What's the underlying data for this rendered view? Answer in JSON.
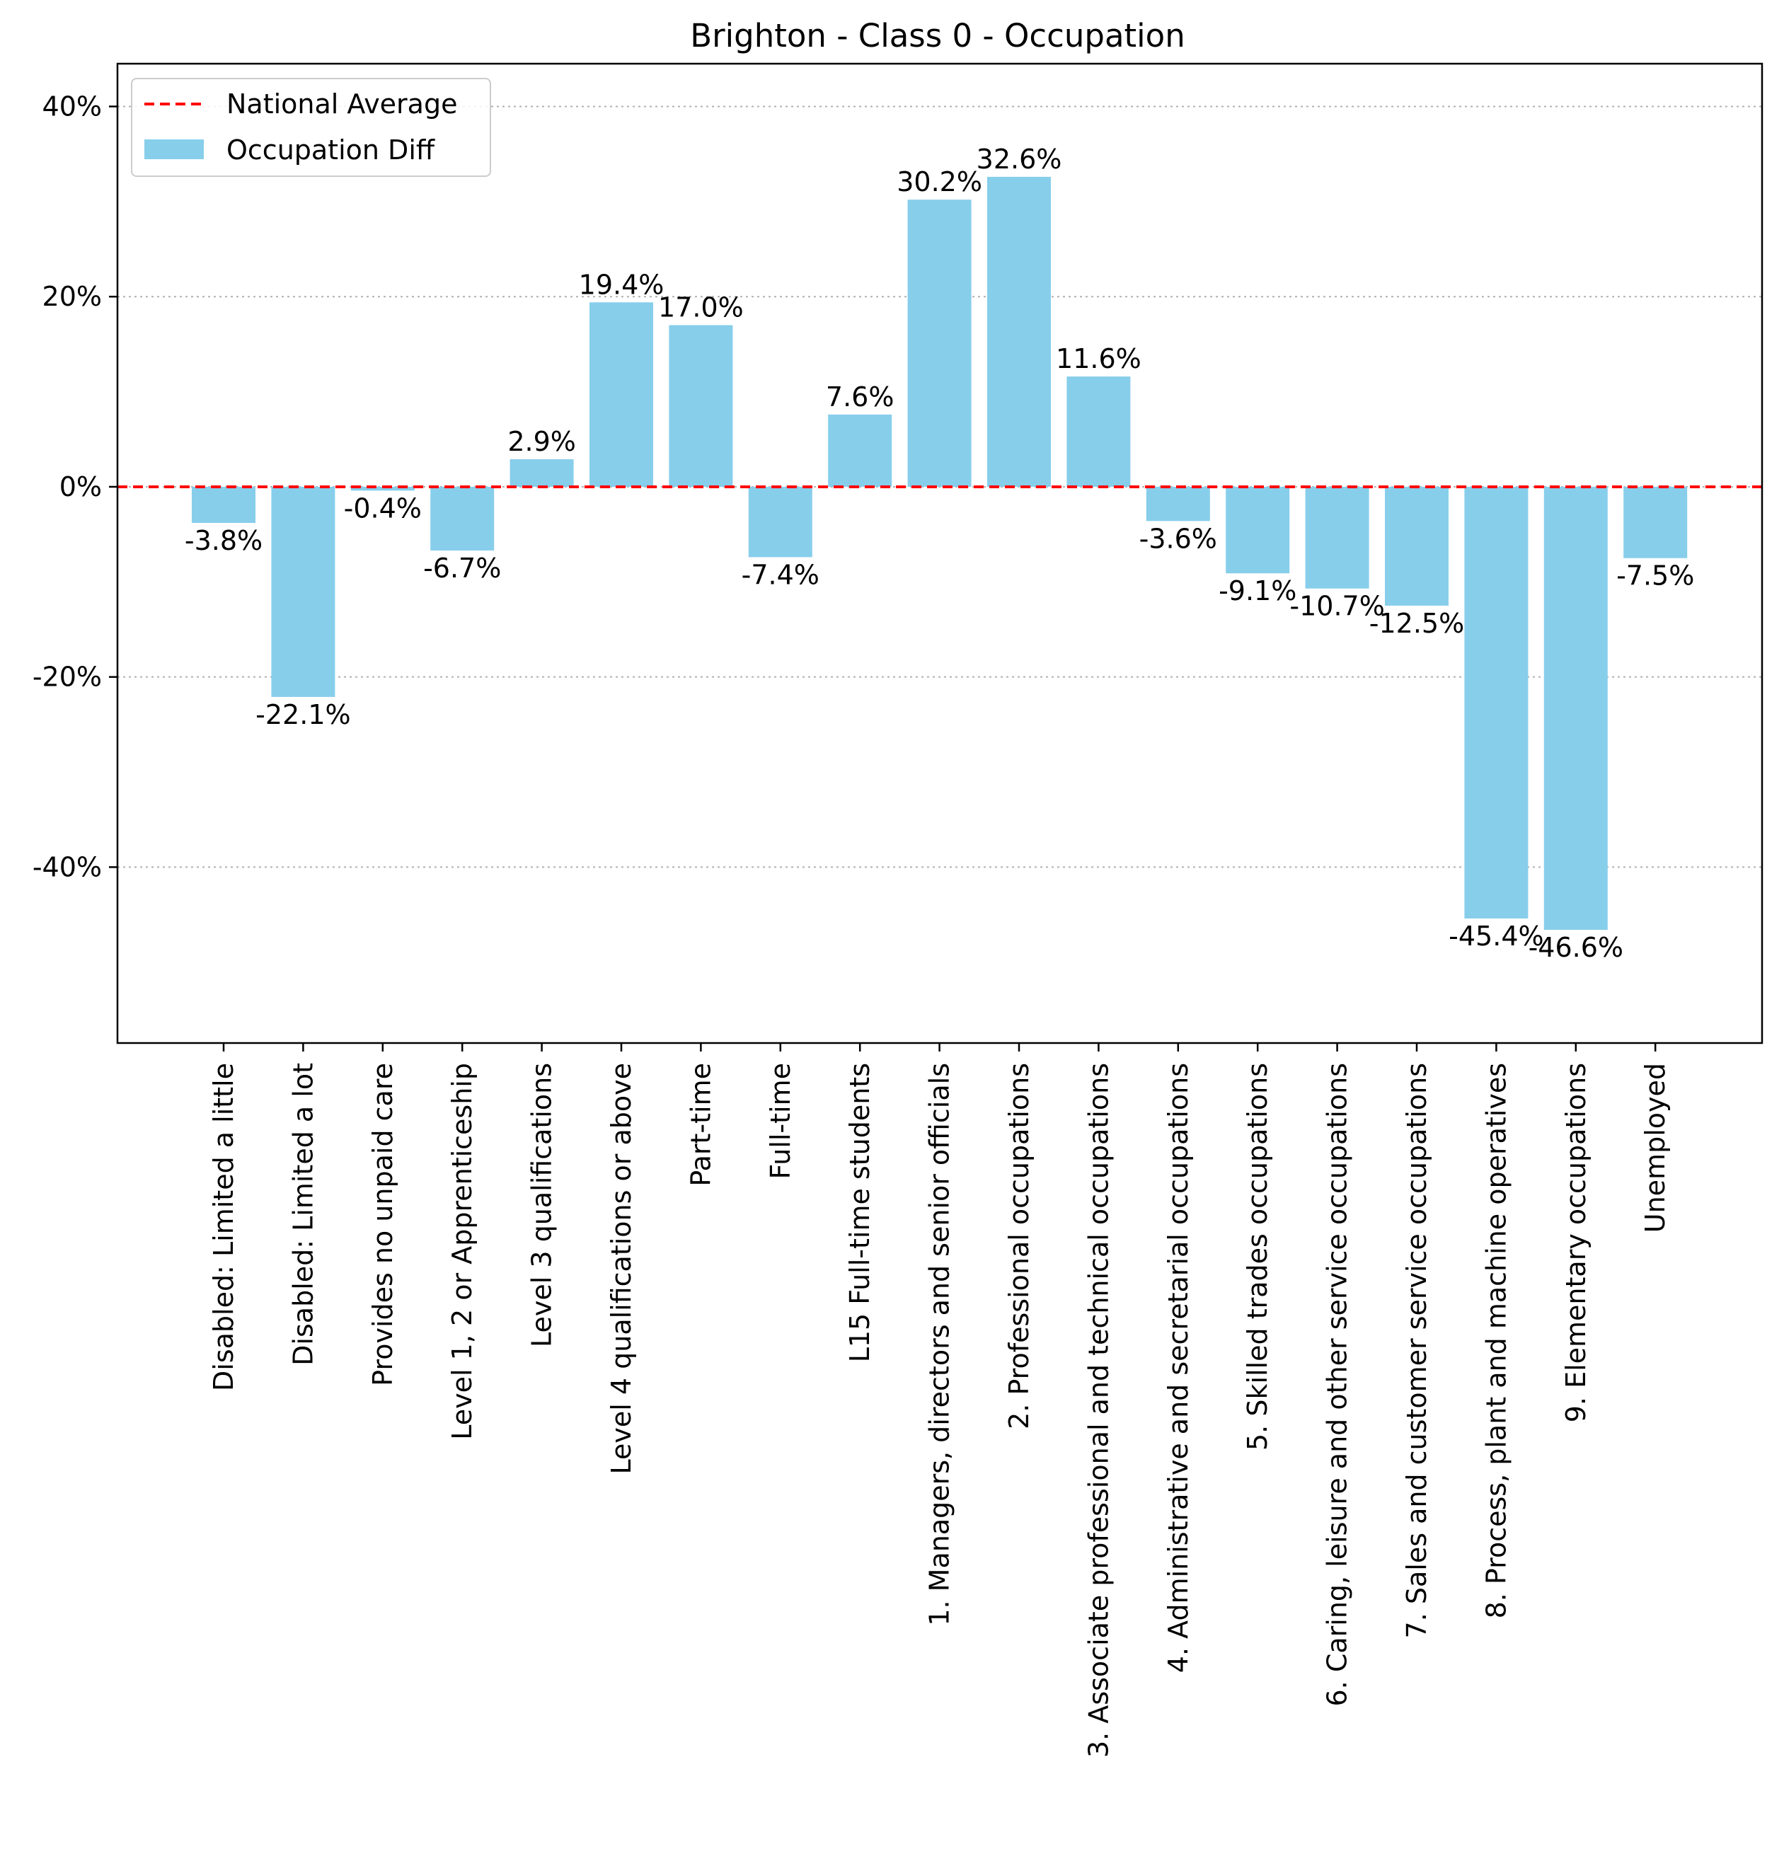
{
  "chart_data": {
    "type": "bar",
    "title": "Brighton - Class 0 - Occupation",
    "xlabel": "",
    "ylabel": "",
    "ylim": [
      -58.5,
      44.5
    ],
    "yticks": [
      {
        "value": 40,
        "label": "40%"
      },
      {
        "value": 20,
        "label": "20%"
      },
      {
        "value": 0,
        "label": "0%"
      },
      {
        "value": -20,
        "label": "-20%"
      },
      {
        "value": -40,
        "label": "-40%"
      }
    ],
    "grid": "horizontal dotted",
    "legend": {
      "placement": "top-left",
      "entries": [
        {
          "label": "National Average",
          "kind": "dashed-line",
          "color": "#ff0000"
        },
        {
          "label": "Occupation Diff",
          "kind": "bar",
          "color": "#87ceeb"
        }
      ]
    },
    "reference_line": {
      "name": "National Average",
      "value": 0,
      "color": "#ff0000"
    },
    "bar_color": "#87ceeb",
    "categories": [
      "Disabled: Limited a little",
      "Disabled: Limited a lot",
      "Provides no unpaid care",
      "Level 1, 2 or Apprenticeship",
      "Level 3 qualifications",
      "Level 4 qualifications or above",
      "Part-time",
      "Full-time",
      "L15 Full-time students",
      "1. Managers, directors and senior officials",
      "2. Professional occupations",
      "3. Associate professional and technical occupations",
      "4. Administrative and secretarial occupations",
      "5. Skilled trades occupations",
      "6. Caring, leisure and other service occupations",
      "7. Sales and customer service occupations",
      "8. Process, plant and machine operatives",
      "9. Elementary occupations",
      "Unemployed"
    ],
    "series": [
      {
        "name": "Occupation Diff",
        "values": [
          -3.8,
          -22.1,
          -0.4,
          -6.7,
          2.9,
          19.4,
          17.0,
          -7.4,
          7.6,
          30.2,
          32.6,
          11.6,
          -3.6,
          -9.1,
          -10.7,
          -12.5,
          -45.4,
          -46.6,
          -7.5
        ]
      }
    ],
    "value_labels": [
      "-3.8%",
      "-22.1%",
      "-0.4%",
      "-6.7%",
      "2.9%",
      "19.4%",
      "17.0%",
      "-7.4%",
      "7.6%",
      "30.2%",
      "32.6%",
      "11.6%",
      "-3.6%",
      "-9.1%",
      "-10.7%",
      "-12.5%",
      "-45.4%",
      "-46.6%",
      "-7.5%"
    ]
  }
}
